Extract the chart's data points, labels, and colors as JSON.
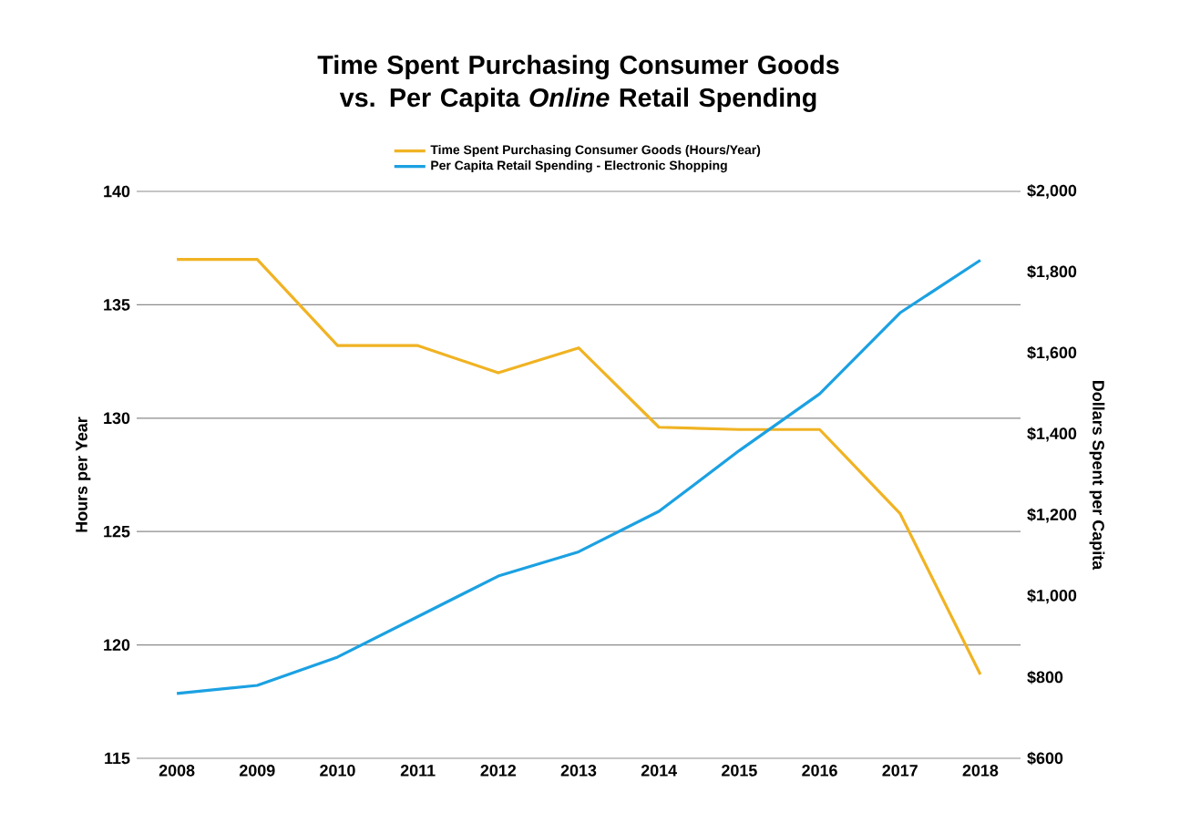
{
  "chart_data": {
    "type": "line",
    "title": "Time Spent Purchasing Consumer Goods vs. Per Capita *Online* Retail Spending",
    "ylabel": "Hours per Year",
    "y2label": "Dollars Spent per Capita",
    "categories": [
      "2008",
      "2009",
      "2010",
      "2011",
      "2012",
      "2013",
      "2014",
      "2015",
      "2016",
      "2017",
      "2018"
    ],
    "series": [
      {
        "name": "Time Spent Purchasing Consumer Goods (Hours/Year)",
        "color": "#f0b323",
        "values": [
          137,
          137,
          133.2,
          133.2,
          132,
          133.1,
          129.6,
          129.5,
          129.5,
          125.8,
          118.7
        ]
      },
      {
        "name": "Per Capita Retail Spending - Electronic Shopping",
        "color": "#1ba1e2",
        "axis": "y2",
        "values": [
          760,
          780,
          850,
          950,
          1050,
          1110,
          1210,
          1360,
          1500,
          1700,
          1830
        ]
      }
    ],
    "ylim": [
      115,
      140
    ],
    "yticks": [
      115,
      120,
      125,
      130,
      135,
      140
    ],
    "y2lim": [
      600,
      2000
    ],
    "y2ticks": [
      {
        "value": 600,
        "label": "$600"
      },
      {
        "value": 800,
        "label": "$800"
      },
      {
        "value": 1000,
        "label": "$1,000"
      },
      {
        "value": 1200,
        "label": "$1,200"
      },
      {
        "value": 1400,
        "label": "$1,400"
      },
      {
        "value": 1600,
        "label": "$1,600"
      },
      {
        "value": 1800,
        "label": "$1,800"
      },
      {
        "value": 2000,
        "label": "$2,000"
      }
    ],
    "grid": "y",
    "legend": "top",
    "marker": "none",
    "line_style": "solid"
  }
}
